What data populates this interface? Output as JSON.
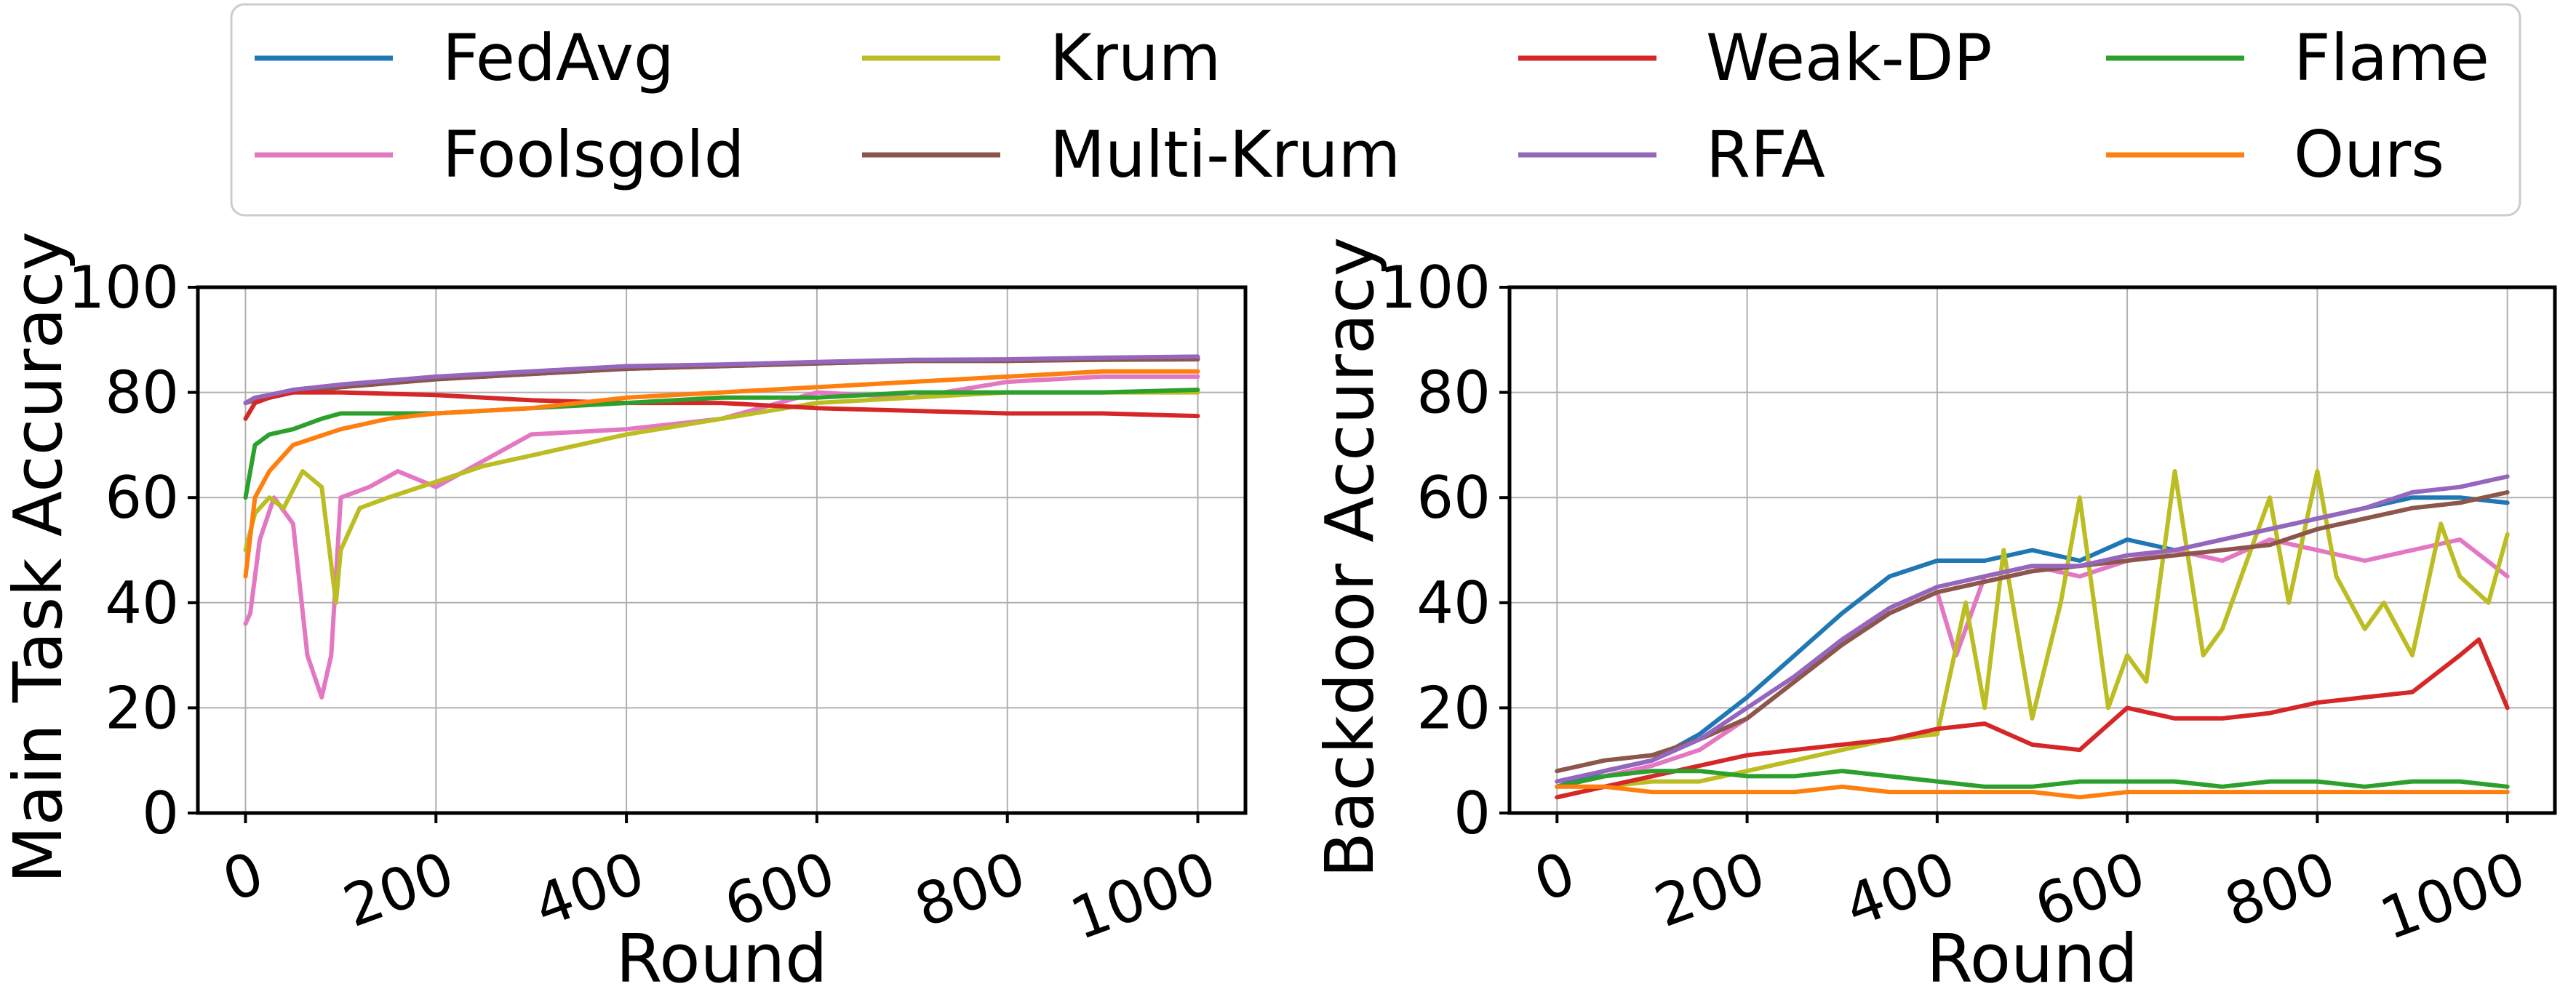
{
  "legend": {
    "placement": "top-center",
    "entries": [
      {
        "label": "FedAvg",
        "color": "#1f77b4"
      },
      {
        "label": "Krum",
        "color": "#bcbd22"
      },
      {
        "label": "Weak-DP",
        "color": "#d62728"
      },
      {
        "label": "Flame",
        "color": "#2ca02c"
      },
      {
        "label": "Foolsgold",
        "color": "#e377c2"
      },
      {
        "label": "Multi-Krum",
        "color": "#8c564b"
      },
      {
        "label": "RFA",
        "color": "#9467bd"
      },
      {
        "label": "Ours",
        "color": "#ff7f0e"
      }
    ]
  },
  "chart_data": [
    {
      "type": "line",
      "title": "",
      "xlabel": "Round",
      "ylabel": "Main Task Accuracy",
      "xlim": [
        -50,
        1050
      ],
      "ylim": [
        0,
        100
      ],
      "xticks": [
        "0",
        "200",
        "400",
        "600",
        "800",
        "1000"
      ],
      "yticks": [
        "0",
        "20",
        "40",
        "60",
        "80",
        "100"
      ],
      "grid": true,
      "series": [
        {
          "name": "FedAvg",
          "color": "#1f77b4",
          "x": [
            0,
            10,
            25,
            50,
            100,
            200,
            300,
            400,
            500,
            600,
            700,
            800,
            900,
            1000
          ],
          "y": [
            78,
            78.5,
            79,
            80,
            81,
            82.5,
            83.5,
            84.5,
            85,
            85.5,
            86,
            86,
            86.3,
            86.5
          ]
        },
        {
          "name": "Foolsgold",
          "color": "#e377c2",
          "x": [
            0,
            5,
            15,
            30,
            50,
            65,
            80,
            90,
            100,
            130,
            160,
            200,
            250,
            300,
            400,
            500,
            600,
            700,
            800,
            900,
            1000
          ],
          "y": [
            36,
            38,
            52,
            60,
            55,
            30,
            22,
            30,
            60,
            62,
            65,
            62,
            67,
            72,
            73,
            75,
            80,
            79,
            82,
            83,
            83
          ]
        },
        {
          "name": "Krum",
          "color": "#bcbd22",
          "x": [
            0,
            10,
            25,
            40,
            60,
            80,
            95,
            100,
            120,
            150,
            200,
            250,
            300,
            400,
            500,
            600,
            700,
            800,
            900,
            1000
          ],
          "y": [
            50,
            57,
            60,
            58,
            65,
            62,
            40,
            50,
            58,
            60,
            63,
            66,
            68,
            72,
            75,
            78,
            79,
            80,
            80,
            80
          ]
        },
        {
          "name": "Multi-Krum",
          "color": "#8c564b",
          "x": [
            0,
            10,
            25,
            50,
            100,
            200,
            300,
            400,
            500,
            600,
            700,
            800,
            900,
            1000
          ],
          "y": [
            78,
            78.5,
            79,
            80,
            81,
            82.5,
            83.5,
            84.5,
            85,
            85.5,
            86,
            86,
            86.2,
            86.3
          ]
        },
        {
          "name": "Weak-DP",
          "color": "#d62728",
          "x": [
            0,
            10,
            25,
            50,
            100,
            200,
            300,
            400,
            500,
            600,
            700,
            800,
            900,
            1000
          ],
          "y": [
            75,
            78,
            79,
            80,
            80,
            79.5,
            78.5,
            78,
            78,
            77,
            76.5,
            76,
            76,
            75.5
          ]
        },
        {
          "name": "RFA",
          "color": "#9467bd",
          "x": [
            0,
            10,
            25,
            50,
            100,
            200,
            300,
            400,
            500,
            600,
            700,
            800,
            900,
            1000
          ],
          "y": [
            78,
            79,
            79.5,
            80.5,
            81.5,
            83,
            84,
            85,
            85.3,
            85.8,
            86.2,
            86.3,
            86.6,
            86.8
          ]
        },
        {
          "name": "Flame",
          "color": "#2ca02c",
          "x": [
            0,
            10,
            25,
            50,
            80,
            100,
            150,
            200,
            300,
            400,
            500,
            600,
            700,
            800,
            900,
            1000
          ],
          "y": [
            60,
            70,
            72,
            73,
            75,
            76,
            76,
            76,
            77,
            78,
            79,
            79,
            80,
            80,
            80,
            80.5
          ]
        },
        {
          "name": "Ours",
          "color": "#ff7f0e",
          "x": [
            0,
            10,
            25,
            50,
            100,
            150,
            200,
            300,
            400,
            500,
            600,
            700,
            800,
            900,
            1000
          ],
          "y": [
            45,
            60,
            65,
            70,
            73,
            75,
            76,
            77,
            79,
            80,
            81,
            82,
            83,
            84,
            84
          ]
        }
      ]
    },
    {
      "type": "line",
      "title": "",
      "xlabel": "Round",
      "ylabel": "Backdoor Accuracy",
      "xlim": [
        -50,
        1050
      ],
      "ylim": [
        0,
        100
      ],
      "xticks": [
        "0",
        "200",
        "400",
        "600",
        "800",
        "1000"
      ],
      "yticks": [
        "0",
        "20",
        "40",
        "60",
        "80",
        "100"
      ],
      "grid": true,
      "series": [
        {
          "name": "FedAvg",
          "color": "#1f77b4",
          "x": [
            0,
            50,
            100,
            150,
            200,
            250,
            300,
            350,
            400,
            450,
            500,
            550,
            600,
            650,
            700,
            750,
            800,
            850,
            900,
            950,
            1000
          ],
          "y": [
            5,
            8,
            10,
            15,
            22,
            30,
            38,
            45,
            48,
            48,
            50,
            48,
            52,
            50,
            52,
            54,
            56,
            58,
            60,
            60,
            59
          ]
        },
        {
          "name": "Foolsgold",
          "color": "#e377c2",
          "x": [
            0,
            50,
            100,
            150,
            200,
            250,
            300,
            350,
            400,
            420,
            450,
            500,
            550,
            600,
            650,
            700,
            750,
            800,
            850,
            900,
            950,
            1000
          ],
          "y": [
            5,
            7,
            9,
            12,
            18,
            25,
            32,
            38,
            42,
            30,
            45,
            47,
            45,
            48,
            50,
            48,
            52,
            50,
            48,
            50,
            52,
            45
          ]
        },
        {
          "name": "Krum",
          "color": "#bcbd22",
          "x": [
            0,
            50,
            100,
            150,
            200,
            250,
            300,
            350,
            400,
            430,
            450,
            470,
            500,
            530,
            550,
            580,
            600,
            620,
            650,
            680,
            700,
            720,
            750,
            770,
            800,
            820,
            850,
            870,
            900,
            930,
            950,
            980,
            1000
          ],
          "y": [
            3,
            5,
            6,
            6,
            8,
            10,
            12,
            14,
            15,
            40,
            20,
            50,
            18,
            40,
            60,
            20,
            30,
            25,
            65,
            30,
            35,
            45,
            60,
            40,
            65,
            45,
            35,
            40,
            30,
            55,
            45,
            40,
            53
          ]
        },
        {
          "name": "Multi-Krum",
          "color": "#8c564b",
          "x": [
            0,
            50,
            100,
            150,
            200,
            250,
            300,
            350,
            400,
            450,
            500,
            550,
            600,
            650,
            700,
            750,
            800,
            850,
            900,
            950,
            1000
          ],
          "y": [
            8,
            10,
            11,
            14,
            18,
            25,
            32,
            38,
            42,
            44,
            46,
            47,
            48,
            49,
            50,
            51,
            54,
            56,
            58,
            59,
            61
          ]
        },
        {
          "name": "Weak-DP",
          "color": "#d62728",
          "x": [
            0,
            50,
            100,
            150,
            200,
            250,
            300,
            350,
            400,
            450,
            500,
            550,
            600,
            650,
            700,
            750,
            800,
            850,
            900,
            950,
            970,
            1000
          ],
          "y": [
            3,
            5,
            7,
            9,
            11,
            12,
            13,
            14,
            16,
            17,
            13,
            12,
            20,
            18,
            18,
            19,
            21,
            22,
            23,
            30,
            33,
            20
          ]
        },
        {
          "name": "RFA",
          "color": "#9467bd",
          "x": [
            0,
            50,
            100,
            150,
            200,
            250,
            300,
            350,
            400,
            450,
            500,
            550,
            600,
            650,
            700,
            750,
            800,
            850,
            900,
            950,
            1000
          ],
          "y": [
            6,
            8,
            10,
            14,
            20,
            26,
            33,
            39,
            43,
            45,
            47,
            47,
            49,
            50,
            52,
            54,
            56,
            58,
            61,
            62,
            64
          ]
        },
        {
          "name": "Flame",
          "color": "#2ca02c",
          "x": [
            0,
            50,
            100,
            150,
            200,
            250,
            300,
            350,
            400,
            450,
            500,
            550,
            600,
            650,
            700,
            750,
            800,
            850,
            900,
            950,
            1000
          ],
          "y": [
            5,
            7,
            8,
            8,
            7,
            7,
            8,
            7,
            6,
            5,
            5,
            6,
            6,
            6,
            5,
            6,
            6,
            5,
            6,
            6,
            5
          ]
        },
        {
          "name": "Ours",
          "color": "#ff7f0e",
          "x": [
            0,
            50,
            100,
            150,
            200,
            250,
            300,
            350,
            400,
            450,
            500,
            550,
            600,
            650,
            700,
            750,
            800,
            850,
            900,
            950,
            1000
          ],
          "y": [
            5,
            5,
            4,
            4,
            4,
            4,
            5,
            4,
            4,
            4,
            4,
            3,
            4,
            4,
            4,
            4,
            4,
            4,
            4,
            4,
            4
          ]
        }
      ]
    }
  ]
}
